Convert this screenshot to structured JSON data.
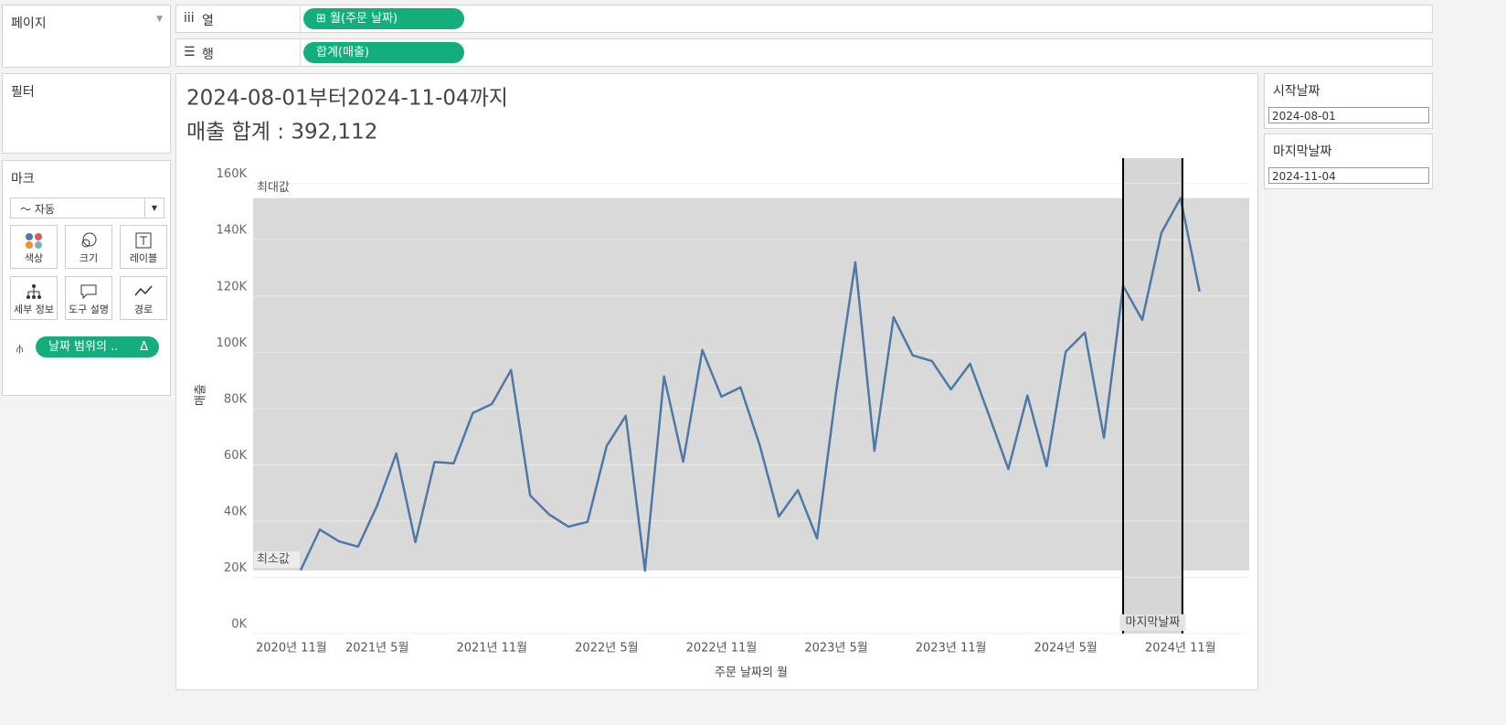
{
  "shelves": {
    "pages": {
      "title": "페이지"
    },
    "columns": {
      "label": "열",
      "pill": "월(주문 날짜)"
    },
    "rows": {
      "label": "행",
      "pill": "합계(매출)"
    }
  },
  "filters": {
    "title": "필터"
  },
  "marks": {
    "title": "마크",
    "type": "자동",
    "buttons": [
      "색상",
      "크기",
      "레이블",
      "세부 정보",
      "도구 설명",
      "경로"
    ],
    "pill": "날짜 범위의 ..",
    "pill_icon": "Δ"
  },
  "parameters": [
    {
      "name": "시작날짜",
      "value": "2024-08-01"
    },
    {
      "name": "마지막날짜",
      "value": "2024-11-04"
    }
  ],
  "chart_data": {
    "type": "line",
    "title": "2024-08-01부터2024-11-04까지",
    "subtitle": "매출 합계 : 392,112",
    "x_label": "주문 날짜의 월",
    "y_label": "매출",
    "color": "#4e79a7",
    "grid": true,
    "x": [
      "2021-01",
      "2021-02",
      "2021-03",
      "2021-04",
      "2021-05",
      "2021-06",
      "2021-07",
      "2021-08",
      "2021-09",
      "2021-10",
      "2021-11",
      "2021-12",
      "2022-01",
      "2022-02",
      "2022-03",
      "2022-04",
      "2022-05",
      "2022-06",
      "2022-07",
      "2022-08",
      "2022-09",
      "2022-10",
      "2022-11",
      "2022-12",
      "2023-01",
      "2023-02",
      "2023-03",
      "2023-04",
      "2023-05",
      "2023-06",
      "2023-07",
      "2023-08",
      "2023-09",
      "2023-10",
      "2023-11",
      "2023-12",
      "2024-01",
      "2024-02",
      "2024-03",
      "2024-04",
      "2024-05",
      "2024-06",
      "2024-07",
      "2024-08",
      "2024-09",
      "2024-10",
      "2024-11",
      "2024-12"
    ],
    "values": [
      22500,
      37000,
      32800,
      30900,
      45500,
      64000,
      32500,
      61000,
      60500,
      78400,
      81600,
      93700,
      49100,
      42300,
      38000,
      39700,
      66700,
      77400,
      22400,
      91400,
      61100,
      100800,
      84200,
      87500,
      67000,
      41600,
      51000,
      33800,
      86200,
      132000,
      65000,
      112500,
      98900,
      96900,
      86800,
      95900,
      77400,
      58500,
      84600,
      59500,
      100200,
      107000,
      69600,
      123600,
      111500,
      142400,
      154800,
      121600
    ],
    "ylim": [
      0,
      169000
    ],
    "yticks": [
      {
        "value": 0,
        "label": "0K"
      },
      {
        "value": 20000,
        "label": "20K"
      },
      {
        "value": 40000,
        "label": "40K"
      },
      {
        "value": 60000,
        "label": "60K"
      },
      {
        "value": 80000,
        "label": "80K"
      },
      {
        "value": 100000,
        "label": "100K"
      },
      {
        "value": 120000,
        "label": "120K"
      },
      {
        "value": 140000,
        "label": "140K"
      },
      {
        "value": 160000,
        "label": "160K"
      }
    ],
    "xticks": [
      {
        "value": "2020-11",
        "label": "2020년 11월"
      },
      {
        "value": "2021-05",
        "label": "2021년 5월"
      },
      {
        "value": "2021-11",
        "label": "2021년 11월"
      },
      {
        "value": "2022-05",
        "label": "2022년 5월"
      },
      {
        "value": "2022-11",
        "label": "2022년 11월"
      },
      {
        "value": "2023-05",
        "label": "2023년 5월"
      },
      {
        "value": "2023-11",
        "label": "2023년 11월"
      },
      {
        "value": "2024-05",
        "label": "2024년 5월"
      },
      {
        "value": "2024-11",
        "label": "2024년 11월"
      }
    ],
    "reference_band": {
      "min": 22400,
      "max": 154800,
      "min_label": "최소값",
      "max_label": "최대값"
    }
  }
}
